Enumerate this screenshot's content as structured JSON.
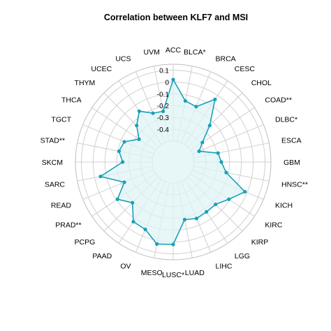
{
  "chart_data": {
    "type": "radar",
    "title": "Correlation between KLF7 and MSI",
    "categories": [
      "ACC",
      "BLCA*",
      "BRCA",
      "CESC",
      "CHOL",
      "COAD**",
      "DLBC*",
      "ESCA",
      "GBM",
      "HNSC**",
      "KICH",
      "KIRC",
      "KIRP",
      "LGG",
      "LIHC",
      "LUAD",
      "LUSC*",
      "MESO",
      "OV",
      "PAAD",
      "PCPG",
      "PRAD**",
      "READ",
      "SARC",
      "SKCM",
      "STAD**",
      "TGCT",
      "THCA",
      "THYM",
      "UCEC",
      "UCS",
      "UVM"
    ],
    "radial_ticks": [
      "0.1",
      "0",
      "-0.1",
      "-0.2",
      "-0.3",
      "-0.4"
    ],
    "rlim": [
      -0.5,
      0.15
    ],
    "grid": true,
    "series": [
      {
        "values": [
          0.02,
          -0.15,
          -0.17,
          -0.04,
          -0.24,
          -0.38,
          -0.44,
          -0.29,
          -0.27,
          -0.22,
          -0.02,
          -0.11,
          -0.17,
          -0.17,
          -0.16,
          -0.18,
          0.02,
          0.03,
          -0.06,
          -0.07,
          -0.19,
          -0.11,
          -0.23,
          -0.05,
          -0.25,
          -0.21,
          -0.23,
          -0.33,
          -0.24,
          -0.16,
          -0.23,
          -0.24
        ],
        "line_color": "#1aa0b8",
        "fill_color": "#dff4f6"
      }
    ]
  }
}
